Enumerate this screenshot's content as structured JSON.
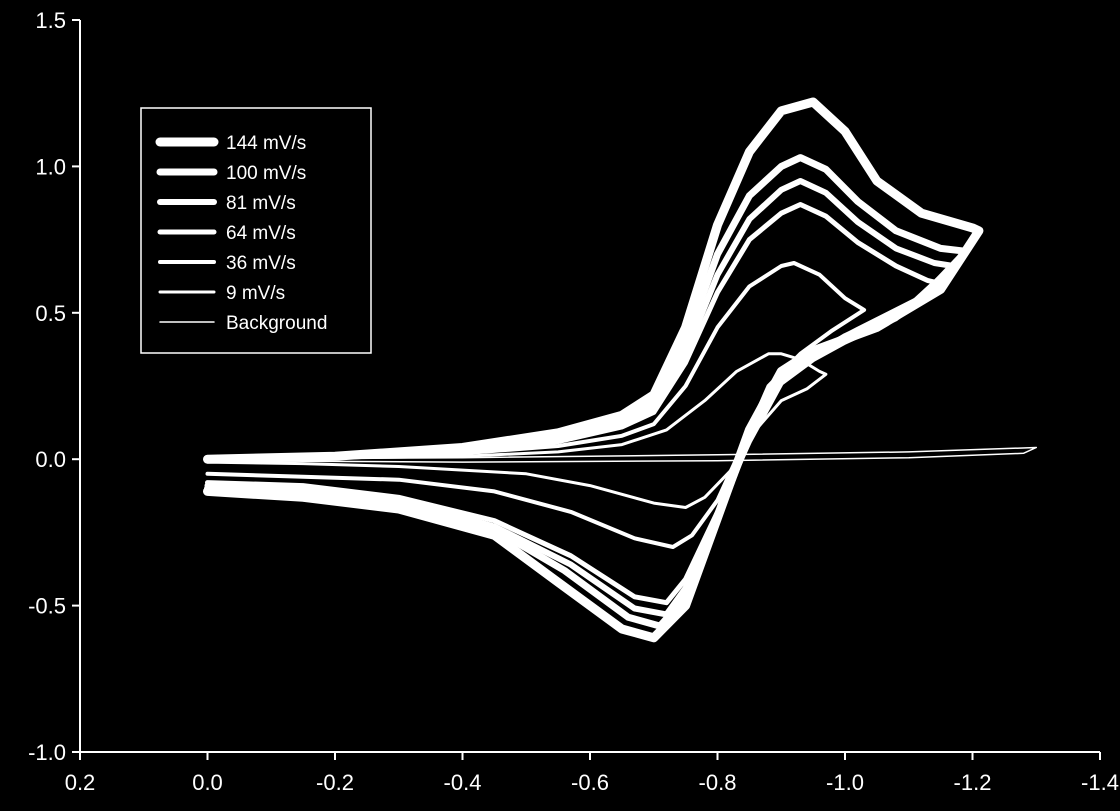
{
  "chart_data": {
    "type": "line",
    "title": "",
    "xlabel": "",
    "ylabel": "",
    "xlim": [
      0.2,
      -1.4
    ],
    "ylim": [
      -1.0,
      1.5
    ],
    "x_ticks": [
      "0.2",
      "0.0",
      "-0.2",
      "-0.4",
      "-0.6",
      "-0.8",
      "-1.0",
      "-1.2",
      "-1.4"
    ],
    "y_ticks": [
      "-1.0",
      "-0.5",
      "0.0",
      "0.5",
      "1.0",
      "1.5"
    ],
    "grid": false,
    "legend_position": "upper-left",
    "colors": {
      "background": "#000000",
      "foreground": "#ffffff"
    },
    "series": [
      {
        "name": "144 mV/s",
        "forward": [
          [
            0.0,
            0.0
          ],
          [
            -0.2,
            0.01
          ],
          [
            -0.4,
            0.04
          ],
          [
            -0.55,
            0.09
          ],
          [
            -0.65,
            0.15
          ],
          [
            -0.7,
            0.22
          ],
          [
            -0.75,
            0.45
          ],
          [
            -0.8,
            0.8
          ],
          [
            -0.85,
            1.05
          ],
          [
            -0.9,
            1.19
          ],
          [
            -0.95,
            1.22
          ],
          [
            -1.0,
            1.12
          ],
          [
            -1.05,
            0.95
          ],
          [
            -1.12,
            0.84
          ],
          [
            -1.2,
            0.79
          ],
          [
            -1.21,
            0.78
          ]
        ],
        "reverse": [
          [
            -1.21,
            0.78
          ],
          [
            -1.15,
            0.58
          ],
          [
            -1.05,
            0.45
          ],
          [
            -0.95,
            0.37
          ],
          [
            -0.9,
            0.3
          ],
          [
            -0.85,
            0.1
          ],
          [
            -0.8,
            -0.2
          ],
          [
            -0.75,
            -0.5
          ],
          [
            -0.7,
            -0.61
          ],
          [
            -0.65,
            -0.58
          ],
          [
            -0.55,
            -0.42
          ],
          [
            -0.45,
            -0.26
          ],
          [
            -0.3,
            -0.17
          ],
          [
            -0.15,
            -0.13
          ],
          [
            0.0,
            -0.11
          ]
        ]
      },
      {
        "name": "100 mV/s",
        "forward": [
          [
            0.0,
            0.0
          ],
          [
            -0.2,
            0.01
          ],
          [
            -0.4,
            0.035
          ],
          [
            -0.55,
            0.08
          ],
          [
            -0.65,
            0.13
          ],
          [
            -0.7,
            0.19
          ],
          [
            -0.75,
            0.4
          ],
          [
            -0.8,
            0.7
          ],
          [
            -0.85,
            0.9
          ],
          [
            -0.9,
            1.0
          ],
          [
            -0.93,
            1.03
          ],
          [
            -0.97,
            0.99
          ],
          [
            -1.02,
            0.88
          ],
          [
            -1.08,
            0.78
          ],
          [
            -1.15,
            0.72
          ],
          [
            -1.19,
            0.71
          ]
        ],
        "reverse": [
          [
            -1.19,
            0.71
          ],
          [
            -1.12,
            0.55
          ],
          [
            -1.02,
            0.44
          ],
          [
            -0.95,
            0.36
          ],
          [
            -0.9,
            0.28
          ],
          [
            -0.85,
            0.08
          ],
          [
            -0.8,
            -0.2
          ],
          [
            -0.75,
            -0.47
          ],
          [
            -0.71,
            -0.57
          ],
          [
            -0.66,
            -0.54
          ],
          [
            -0.56,
            -0.38
          ],
          [
            -0.45,
            -0.24
          ],
          [
            -0.3,
            -0.15
          ],
          [
            -0.15,
            -0.11
          ],
          [
            0.0,
            -0.1
          ]
        ]
      },
      {
        "name": "81 mV/s",
        "forward": [
          [
            0.0,
            0.0
          ],
          [
            -0.2,
            0.01
          ],
          [
            -0.4,
            0.03
          ],
          [
            -0.55,
            0.07
          ],
          [
            -0.65,
            0.12
          ],
          [
            -0.7,
            0.17
          ],
          [
            -0.75,
            0.36
          ],
          [
            -0.8,
            0.63
          ],
          [
            -0.85,
            0.82
          ],
          [
            -0.9,
            0.92
          ],
          [
            -0.93,
            0.95
          ],
          [
            -0.97,
            0.91
          ],
          [
            -1.02,
            0.81
          ],
          [
            -1.08,
            0.72
          ],
          [
            -1.14,
            0.67
          ],
          [
            -1.17,
            0.66
          ]
        ],
        "reverse": [
          [
            -1.17,
            0.66
          ],
          [
            -1.1,
            0.52
          ],
          [
            -1.0,
            0.42
          ],
          [
            -0.95,
            0.35
          ],
          [
            -0.9,
            0.27
          ],
          [
            -0.85,
            0.07
          ],
          [
            -0.8,
            -0.19
          ],
          [
            -0.75,
            -0.44
          ],
          [
            -0.72,
            -0.53
          ],
          [
            -0.67,
            -0.51
          ],
          [
            -0.57,
            -0.36
          ],
          [
            -0.45,
            -0.23
          ],
          [
            -0.3,
            -0.14
          ],
          [
            -0.15,
            -0.1
          ],
          [
            0.0,
            -0.09
          ]
        ]
      },
      {
        "name": "64 mV/s",
        "forward": [
          [
            0.0,
            0.0
          ],
          [
            -0.2,
            0.008
          ],
          [
            -0.4,
            0.025
          ],
          [
            -0.55,
            0.06
          ],
          [
            -0.65,
            0.11
          ],
          [
            -0.7,
            0.16
          ],
          [
            -0.75,
            0.33
          ],
          [
            -0.8,
            0.57
          ],
          [
            -0.85,
            0.75
          ],
          [
            -0.9,
            0.84
          ],
          [
            -0.93,
            0.87
          ],
          [
            -0.97,
            0.83
          ],
          [
            -1.02,
            0.74
          ],
          [
            -1.08,
            0.66
          ],
          [
            -1.13,
            0.61
          ],
          [
            -1.15,
            0.6
          ]
        ],
        "reverse": [
          [
            -1.15,
            0.6
          ],
          [
            -1.08,
            0.48
          ],
          [
            -1.0,
            0.4
          ],
          [
            -0.95,
            0.34
          ],
          [
            -0.9,
            0.26
          ],
          [
            -0.85,
            0.06
          ],
          [
            -0.8,
            -0.18
          ],
          [
            -0.75,
            -0.41
          ],
          [
            -0.72,
            -0.49
          ],
          [
            -0.67,
            -0.47
          ],
          [
            -0.57,
            -0.33
          ],
          [
            -0.45,
            -0.21
          ],
          [
            -0.3,
            -0.13
          ],
          [
            -0.15,
            -0.09
          ],
          [
            0.0,
            -0.08
          ]
        ]
      },
      {
        "name": "36 mV/s",
        "forward": [
          [
            0.0,
            0.0
          ],
          [
            -0.2,
            0.006
          ],
          [
            -0.4,
            0.02
          ],
          [
            -0.55,
            0.045
          ],
          [
            -0.65,
            0.08
          ],
          [
            -0.7,
            0.12
          ],
          [
            -0.75,
            0.25
          ],
          [
            -0.8,
            0.45
          ],
          [
            -0.85,
            0.59
          ],
          [
            -0.9,
            0.66
          ],
          [
            -0.92,
            0.67
          ],
          [
            -0.96,
            0.63
          ],
          [
            -1.0,
            0.55
          ],
          [
            -1.03,
            0.51
          ]
        ],
        "reverse": [
          [
            -1.03,
            0.51
          ],
          [
            -0.98,
            0.44
          ],
          [
            -0.93,
            0.36
          ],
          [
            -0.88,
            0.25
          ],
          [
            -0.84,
            0.05
          ],
          [
            -0.8,
            -0.14
          ],
          [
            -0.76,
            -0.26
          ],
          [
            -0.73,
            -0.3
          ],
          [
            -0.67,
            -0.27
          ],
          [
            -0.57,
            -0.18
          ],
          [
            -0.45,
            -0.11
          ],
          [
            -0.3,
            -0.07
          ],
          [
            -0.15,
            -0.06
          ],
          [
            0.0,
            -0.05
          ]
        ]
      },
      {
        "name": "9 mV/s",
        "forward": [
          [
            0.0,
            0.0
          ],
          [
            -0.2,
            0.004
          ],
          [
            -0.4,
            0.01
          ],
          [
            -0.55,
            0.025
          ],
          [
            -0.65,
            0.05
          ],
          [
            -0.72,
            0.1
          ],
          [
            -0.78,
            0.2
          ],
          [
            -0.83,
            0.3
          ],
          [
            -0.88,
            0.36
          ],
          [
            -0.9,
            0.36
          ],
          [
            -0.93,
            0.34
          ],
          [
            -0.96,
            0.3
          ],
          [
            -0.97,
            0.29
          ]
        ],
        "reverse": [
          [
            -0.97,
            0.29
          ],
          [
            -0.94,
            0.24
          ],
          [
            -0.9,
            0.2
          ],
          [
            -0.86,
            0.1
          ],
          [
            -0.82,
            -0.04
          ],
          [
            -0.78,
            -0.13
          ],
          [
            -0.75,
            -0.165
          ],
          [
            -0.7,
            -0.15
          ],
          [
            -0.6,
            -0.09
          ],
          [
            -0.5,
            -0.05
          ],
          [
            -0.3,
            -0.025
          ],
          [
            -0.15,
            -0.015
          ],
          [
            0.0,
            -0.01
          ]
        ]
      },
      {
        "name": "Background",
        "forward": [
          [
            0.0,
            0.0
          ],
          [
            -0.4,
            0.005
          ],
          [
            -0.8,
            0.015
          ],
          [
            -1.1,
            0.025
          ],
          [
            -1.3,
            0.04
          ]
        ],
        "reverse": [
          [
            -1.3,
            0.04
          ],
          [
            -1.28,
            0.02
          ],
          [
            -1.1,
            0.005
          ],
          [
            -0.8,
            -0.005
          ],
          [
            -0.4,
            -0.01
          ],
          [
            0.0,
            -0.005
          ]
        ]
      }
    ]
  }
}
